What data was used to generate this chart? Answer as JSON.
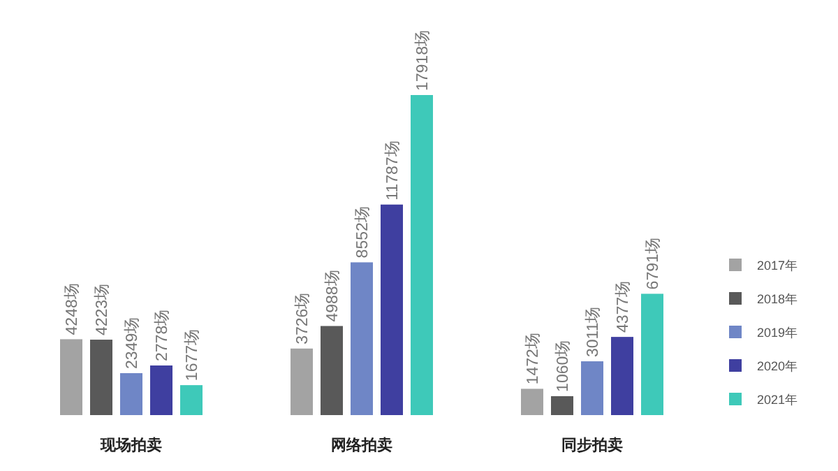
{
  "chart_data": {
    "type": "bar",
    "categories": [
      "现场拍卖",
      "网络拍卖",
      "同步拍卖"
    ],
    "legend": "right",
    "series": [
      {
        "name": "2017年",
        "color": "#a3a3a3",
        "values": [
          4248,
          3726,
          1472
        ],
        "value_labels": [
          "4248场",
          "3726场",
          "1472场"
        ]
      },
      {
        "name": "2018年",
        "color": "#595959",
        "values": [
          4223,
          4988,
          1060
        ],
        "value_labels": [
          "4223场",
          "4988场",
          "1060场"
        ]
      },
      {
        "name": "2019年",
        "color": "#6f86c6",
        "values": [
          2349,
          8552,
          3011
        ],
        "value_labels": [
          "2349场",
          "8552场",
          "3011场"
        ]
      },
      {
        "name": "2020年",
        "color": "#3f3fa0",
        "values": [
          2778,
          11787,
          4377
        ],
        "value_labels": [
          "2778场",
          "11787场",
          "4377场"
        ]
      },
      {
        "name": "2021年",
        "color": "#3ec9b9",
        "values": [
          1677,
          17918,
          6791
        ],
        "value_labels": [
          "1677场",
          "17918场",
          "6791场"
        ]
      }
    ]
  }
}
